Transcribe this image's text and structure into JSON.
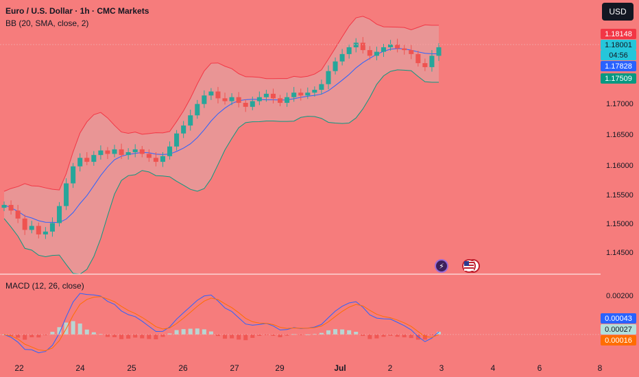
{
  "header": {
    "title": "Euro / U.S. Dollar · 1h · CMC Markets",
    "bb_label": "BB (20, SMA, close, 2)",
    "macd_label": "MACD (12, 26, close)",
    "currency_button": "USD"
  },
  "price_tags": {
    "bb_upper": "1.18148",
    "last_price": "1.18001",
    "countdown": "04:56",
    "bb_basis": "1.17828",
    "bb_lower": "1.17509",
    "macd_line": "0.00043",
    "signal_line": "0.00027",
    "histogram": "0.00016"
  },
  "colors": {
    "background": "#f67c7c",
    "candle_up": "#26a69a",
    "candle_down": "#ef5350",
    "bb_upper": "#f23645",
    "bb_basis": "#2962ff",
    "bb_lower": "#089981",
    "bb_fill": "#d9b3b3",
    "macd_line": "#2962ff",
    "signal_line": "#ff6d00",
    "tag_upper": "#f23645",
    "tag_last": "#26c6da",
    "tag_basis": "#2962ff",
    "tag_lower": "#089981",
    "tag_signal": "#b2dfdb",
    "tag_hist": "#ff6d00"
  },
  "events": [
    "lightning-event-icon",
    "us-flag-event-icon"
  ],
  "chart_data": {
    "type": "candlestick",
    "title": "Euro / U.S. Dollar · 1h · CMC Markets",
    "y_axis_ticks": [
      "1.17000",
      "1.16500",
      "1.16000",
      "1.15500",
      "1.15000",
      "1.14500"
    ],
    "macd_axis_ticks": [
      "0.00200"
    ],
    "x_axis_ticks": [
      {
        "label": "22",
        "bold": false
      },
      {
        "label": "24",
        "bold": false
      },
      {
        "label": "25",
        "bold": false
      },
      {
        "label": "26",
        "bold": false
      },
      {
        "label": "27",
        "bold": false
      },
      {
        "label": "29",
        "bold": false
      },
      {
        "label": "Jul",
        "bold": true
      },
      {
        "label": "2",
        "bold": false
      },
      {
        "label": "3",
        "bold": false
      },
      {
        "label": "4",
        "bold": false
      },
      {
        "label": "6",
        "bold": false
      },
      {
        "label": "8",
        "bold": false
      }
    ],
    "price_ylim": [
      1.1418,
      1.1835
    ],
    "close_approx": [
      1.1522,
      1.1512,
      1.1498,
      1.1478,
      1.1485,
      1.147,
      1.1475,
      1.149,
      1.152,
      1.156,
      1.159,
      1.1605,
      1.1598,
      1.161,
      1.1618,
      1.1612,
      1.162,
      1.161,
      1.1615,
      1.162,
      1.1612,
      1.1605,
      1.1598,
      1.1608,
      1.1625,
      1.1648,
      1.1662,
      1.168,
      1.17,
      1.1715,
      1.1722,
      1.171,
      1.1705,
      1.1712,
      1.1702,
      1.1695,
      1.1705,
      1.1712,
      1.1718,
      1.171,
      1.1702,
      1.1712,
      1.172,
      1.1715,
      1.172,
      1.1725,
      1.1735,
      1.1758,
      1.1775,
      1.1788,
      1.18,
      1.1808,
      1.1795,
      1.1785,
      1.1792,
      1.18,
      1.1805,
      1.1798,
      1.1795,
      1.1788,
      1.1772,
      1.1765,
      1.1785,
      1.18
    ]
  }
}
